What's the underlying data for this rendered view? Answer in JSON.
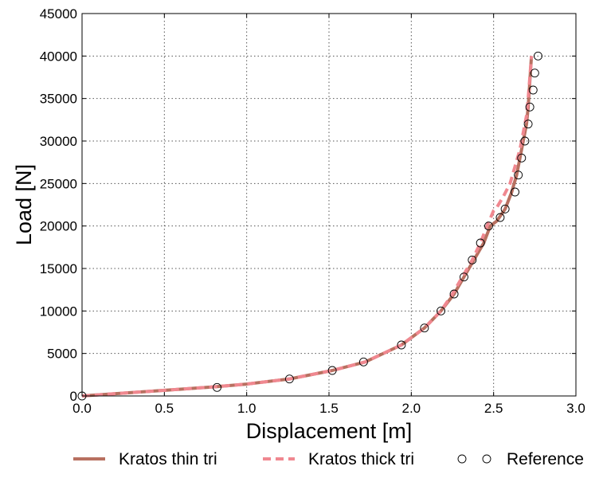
{
  "chart_data": {
    "type": "line",
    "xlabel": "Displacement [m]",
    "ylabel": "Load [N]",
    "xlim": [
      0.0,
      3.0
    ],
    "ylim": [
      0,
      45000
    ],
    "xticks": [
      "0.0",
      "0.5",
      "1.0",
      "1.5",
      "2.0",
      "2.5",
      "3.0"
    ],
    "yticks": [
      "0",
      "5000",
      "10000",
      "15000",
      "20000",
      "25000",
      "30000",
      "35000",
      "40000",
      "45000"
    ],
    "grid": true,
    "legend_position": "bottom",
    "series": [
      {
        "name": "Kratos thin tri",
        "style": "solid",
        "color": "#b87060",
        "x": [
          0.0,
          0.3,
          0.6,
          0.82,
          1.0,
          1.26,
          1.52,
          1.72,
          1.94,
          2.08,
          2.18,
          2.26,
          2.32,
          2.38,
          2.44,
          2.48,
          2.52,
          2.57,
          2.61,
          2.64,
          2.66,
          2.68,
          2.7,
          2.71,
          2.72,
          2.73
        ],
        "y": [
          0,
          400,
          800,
          1100,
          1400,
          2000,
          3000,
          4000,
          6000,
          8000,
          10000,
          12000,
          14000,
          16000,
          18000,
          20000,
          20600,
          22000,
          24000,
          26000,
          28000,
          30000,
          32000,
          34000,
          37000,
          40000
        ]
      },
      {
        "name": "Kratos thick tri",
        "style": "dashed",
        "color": "#f08890",
        "x": [
          0.0,
          0.3,
          0.6,
          0.82,
          1.0,
          1.26,
          1.52,
          1.72,
          1.94,
          2.08,
          2.18,
          2.25,
          2.31,
          2.37,
          2.42,
          2.46,
          2.5,
          2.52,
          2.56,
          2.6,
          2.63,
          2.66,
          2.68,
          2.7,
          2.71,
          2.73
        ],
        "y": [
          0,
          400,
          800,
          1100,
          1400,
          2000,
          3000,
          4000,
          6000,
          8000,
          10000,
          12000,
          14000,
          16000,
          18000,
          20000,
          21800,
          22200,
          23500,
          25000,
          27000,
          29000,
          31000,
          33000,
          35000,
          40000
        ]
      },
      {
        "name": "Reference",
        "style": "markers",
        "color": "#000000",
        "x": [
          0.0,
          0.82,
          1.26,
          1.52,
          1.71,
          1.94,
          2.08,
          2.18,
          2.26,
          2.32,
          2.37,
          2.42,
          2.47,
          2.54,
          2.57,
          2.63,
          2.65,
          2.67,
          2.69,
          2.71,
          2.72,
          2.74,
          2.75,
          2.77
        ],
        "y": [
          0,
          1000,
          2000,
          3000,
          4000,
          6000,
          8000,
          10000,
          12000,
          14000,
          16000,
          18000,
          20000,
          21000,
          22000,
          24000,
          26000,
          28000,
          30000,
          32000,
          34000,
          36000,
          38000,
          40000
        ]
      }
    ]
  }
}
